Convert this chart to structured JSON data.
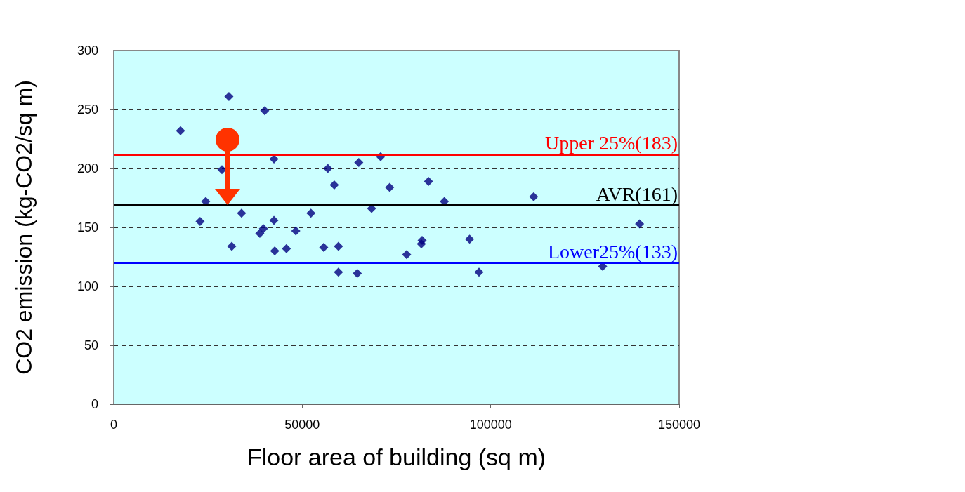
{
  "chart_data": {
    "type": "scatter",
    "xlabel": "Floor area of building (sq m)",
    "ylabel": "CO2 emission (kg-CO2/sq m)",
    "x": [
      17700,
      30550,
      40050,
      24400,
      22900,
      28700,
      31300,
      33900,
      38750,
      39700,
      42500,
      42500,
      42700,
      45800,
      48300,
      52300,
      55700,
      56800,
      58500,
      59600,
      59600,
      64600,
      65000,
      68400,
      70800,
      73200,
      77700,
      81600,
      81800,
      83500,
      87700,
      94400,
      96900,
      111400,
      129700,
      139500
    ],
    "series": [
      {
        "color": "#000080",
        "values": [
          232,
          261,
          249,
          172,
          155,
          199,
          134,
          162,
          145,
          149,
          208,
          156,
          130,
          132,
          147,
          162,
          133,
          200,
          186,
          134,
          112,
          111,
          205,
          166,
          210,
          184,
          127,
          136,
          139,
          189,
          172,
          140,
          112,
          176,
          117,
          153
        ]
      }
    ],
    "marker": "diamond",
    "xlim": [
      0,
      150000
    ],
    "xticks": [
      0,
      50000,
      100000,
      150000
    ],
    "ylim": [
      0,
      300
    ],
    "yticks": [
      0,
      50,
      100,
      150,
      200,
      250,
      300
    ],
    "grid": "y",
    "ref_lines": [
      {
        "axis": "y",
        "value": 212,
        "label": "Upper 25%(183)",
        "color": "#ff0000"
      },
      {
        "axis": "y",
        "value": 169,
        "label": "AVR(161)",
        "color": "#000000"
      },
      {
        "axis": "y",
        "value": 120,
        "label": "Lower25%(133)",
        "color": "#0000ff"
      }
    ]
  }
}
